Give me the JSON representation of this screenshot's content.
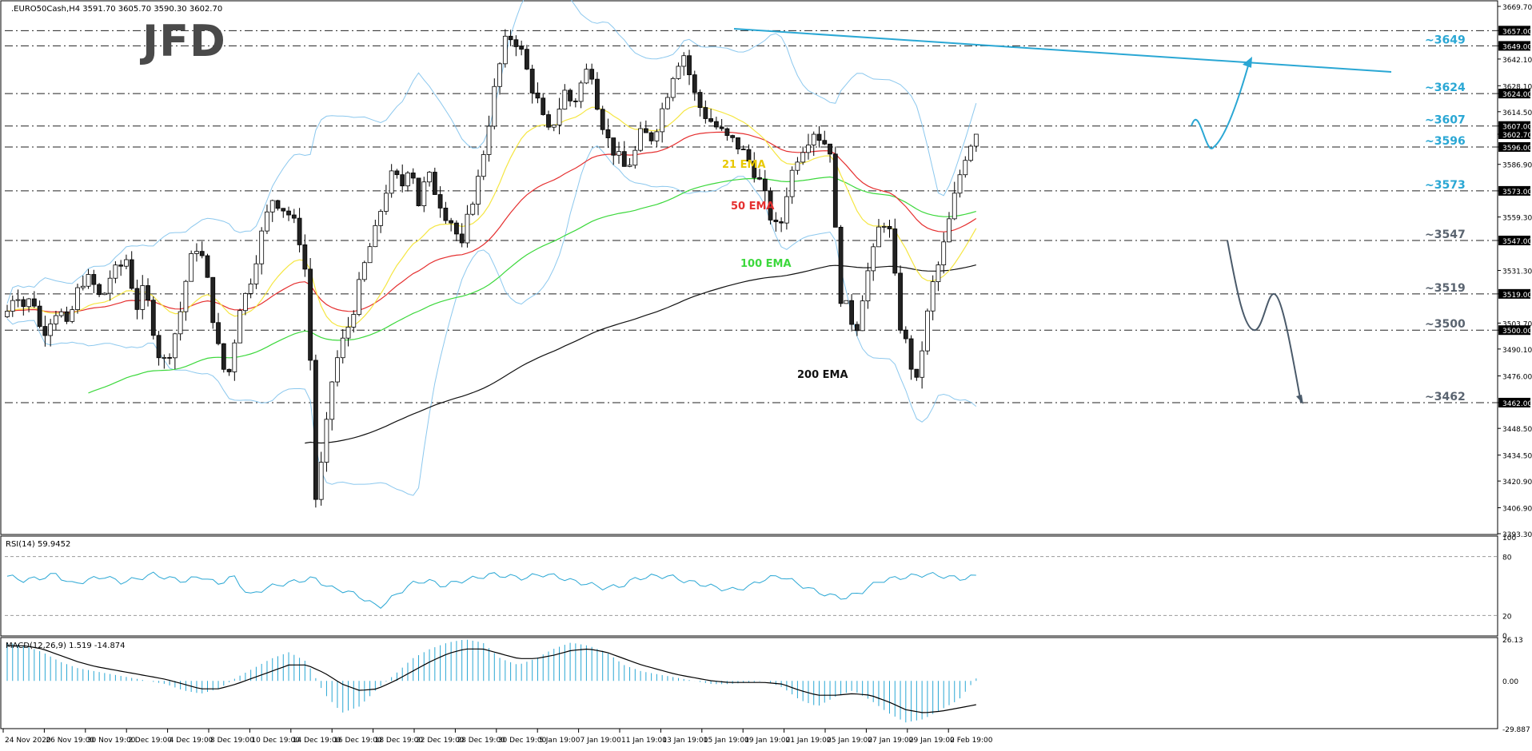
{
  "header": {
    "symbol_info": ".EURO50Cash,H4  3591.70 3605.70 3590.30 3602.70",
    "rsi_label": "RSI(14) 59.9452",
    "macd_label": "MACD(12,26,9) 1.519 -14.874"
  },
  "brand": {
    "logo_text": "JFD"
  },
  "colors": {
    "bull": "#ffffff",
    "bear": "#222222",
    "ema21": "#f5e642",
    "ema50": "#e53030",
    "ema100": "#3cd83c",
    "ema200": "#111111",
    "bollinger": "#8cc8ee",
    "accent": "#2aa7d4",
    "scenario": "#4a5a6a"
  },
  "chart_data": [
    {
      "type": "candlestick",
      "title": "",
      "ylim": [
        3393.3,
        3669.7
      ],
      "price_axis_ticks": [
        "3669.70",
        "3657.00",
        "3649.00",
        "3642.10",
        "3628.10",
        "3624.00",
        "3614.50",
        "3607.00",
        "3602.70",
        "3596.00",
        "3586.90",
        "3573.00",
        "3559.30",
        "3547.00",
        "3531.30",
        "3519.00",
        "3503.70",
        "3500.00",
        "3490.10",
        "3476.00",
        "3462.00",
        "3448.50",
        "3434.50",
        "3420.90",
        "3406.90",
        "3393.30"
      ],
      "highlighted_price_tags": [
        "3657.00",
        "3649.00",
        "3624.00",
        "3607.00",
        "3602.70",
        "3596.00",
        "3573.00",
        "3547.00",
        "3519.00",
        "3500.00",
        "3462.00"
      ],
      "horizontal_levels": [
        3657,
        3649,
        3624,
        3607,
        3596,
        3573,
        3547,
        3519,
        3500,
        3462
      ],
      "level_labels": [
        {
          "text": "~3649",
          "value": 3649,
          "accent": true
        },
        {
          "text": "~3624",
          "value": 3624,
          "accent": true
        },
        {
          "text": "~3607",
          "value": 3607,
          "accent": true
        },
        {
          "text": "~3596",
          "value": 3596,
          "accent": true
        },
        {
          "text": "~3573",
          "value": 3573,
          "accent": true
        },
        {
          "text": "~3547",
          "value": 3547,
          "accent": false
        },
        {
          "text": "~3519",
          "value": 3519,
          "accent": false
        },
        {
          "text": "~3500",
          "value": 3500,
          "accent": false
        },
        {
          "text": "~3462",
          "value": 3462,
          "accent": false
        }
      ],
      "indicator_labels": [
        {
          "text": "21 EMA",
          "series": "ema21"
        },
        {
          "text": "50 EMA",
          "series": "ema50"
        },
        {
          "text": "100 EMA",
          "series": "ema100"
        },
        {
          "text": "200 EMA",
          "series": "ema200"
        }
      ],
      "x_labels": [
        "24 Nov 2020",
        "26 Nov 19:00",
        "30 Nov 19:00",
        "2 Dec 19:00",
        "4 Dec 19:00",
        "8 Dec 19:00",
        "10 Dec 19:00",
        "14 Dec 19:00",
        "16 Dec 19:00",
        "18 Dec 19:00",
        "22 Dec 19:00",
        "28 Dec 19:00",
        "30 Dec 19:00",
        "5 Jan 19:00",
        "7 Jan 19:00",
        "11 Jan 19:00",
        "13 Jan 19:00",
        "15 Jan 19:00",
        "19 Jan 19:00",
        "21 Jan 19:00",
        "25 Jan 19:00",
        "27 Jan 19:00",
        "29 Jan 19:00",
        "2 Feb 19:00"
      ],
      "close_anchors": [
        3510,
        3522,
        3512,
        3518,
        3497,
        3506,
        3512,
        3500,
        3518,
        3528,
        3524,
        3515,
        3528,
        3532,
        3538,
        3511,
        3522,
        3502,
        3481,
        3490,
        3505,
        3530,
        3545,
        3535,
        3507,
        3480,
        3478,
        3512,
        3520,
        3538,
        3556,
        3570,
        3565,
        3560,
        3550,
        3525,
        3410,
        3440,
        3478,
        3492,
        3505,
        3522,
        3540,
        3552,
        3572,
        3582,
        3575,
        3590,
        3566,
        3582,
        3572,
        3562,
        3556,
        3542,
        3565,
        3580,
        3605,
        3630,
        3650,
        3655,
        3645,
        3630,
        3618,
        3602,
        3612,
        3625,
        3618,
        3630,
        3640,
        3615,
        3600,
        3592,
        3585,
        3590,
        3604,
        3600,
        3610,
        3625,
        3640,
        3645,
        3625,
        3615,
        3610,
        3605,
        3600,
        3598,
        3592,
        3585,
        3575,
        3560,
        3550,
        3575,
        3590,
        3598,
        3605,
        3600,
        3595,
        3520,
        3510,
        3500,
        3525,
        3540,
        3560,
        3550,
        3505,
        3490,
        3470,
        3500,
        3525,
        3540,
        3560,
        3580,
        3596,
        3602.7
      ],
      "scenario_up": {
        "start": 3596,
        "target": 3640
      },
      "scenario_down": {
        "path": [
          3547,
          3500,
          3519,
          3462
        ]
      }
    },
    {
      "type": "line",
      "title": "RSI(14)",
      "ylim": [
        0,
        100
      ],
      "levels": [
        80,
        20
      ],
      "tick_labels": [
        "100",
        "80",
        "20",
        "0"
      ],
      "anchors": [
        60,
        56,
        58,
        62,
        52,
        56,
        60,
        54,
        57,
        62,
        58,
        55,
        60,
        52,
        60,
        40,
        48,
        52,
        55,
        58,
        48,
        45,
        38,
        28,
        40,
        52,
        56,
        50,
        55,
        58,
        62,
        60,
        58,
        62,
        60,
        55,
        52,
        48,
        50,
        58,
        60,
        60,
        55,
        52,
        48,
        46,
        50,
        58,
        60,
        52,
        45,
        40,
        38,
        45,
        55,
        58,
        60,
        62,
        60,
        57.5,
        59.9452
      ]
    },
    {
      "type": "bar",
      "title": "MACD(12,26,9)",
      "ylim": [
        -29.887,
        26.13
      ],
      "tick_labels": [
        "26.13",
        "0.00",
        "-29.887"
      ],
      "histogram_anchors": [
        24,
        22,
        18,
        12,
        8,
        6,
        4,
        2,
        0,
        -2,
        -6,
        -8,
        -5,
        2,
        8,
        14,
        18,
        12,
        -8,
        -20,
        -16,
        -5,
        4,
        14,
        20,
        24,
        26,
        24,
        14,
        10,
        14,
        20,
        24,
        22,
        18,
        10,
        6,
        4,
        2,
        0,
        -2,
        -2,
        -1,
        0,
        -4,
        -12,
        -16,
        -10,
        -6,
        -12,
        -20,
        -26,
        -24,
        -18,
        -12,
        1.519
      ],
      "signal_anchors": [
        22,
        22,
        20,
        16,
        12,
        9,
        7,
        5,
        3,
        1,
        -2,
        -5,
        -5,
        -2,
        2,
        6,
        10,
        10,
        5,
        -2,
        -6,
        -5,
        0,
        6,
        12,
        17,
        20,
        20,
        17,
        14,
        14,
        16,
        19,
        20,
        18,
        14,
        10,
        7,
        4,
        2,
        0,
        -1,
        -1,
        -1,
        -2,
        -6,
        -9,
        -9,
        -8,
        -9,
        -13,
        -18,
        -20,
        -19,
        -17,
        -14.874
      ]
    }
  ]
}
